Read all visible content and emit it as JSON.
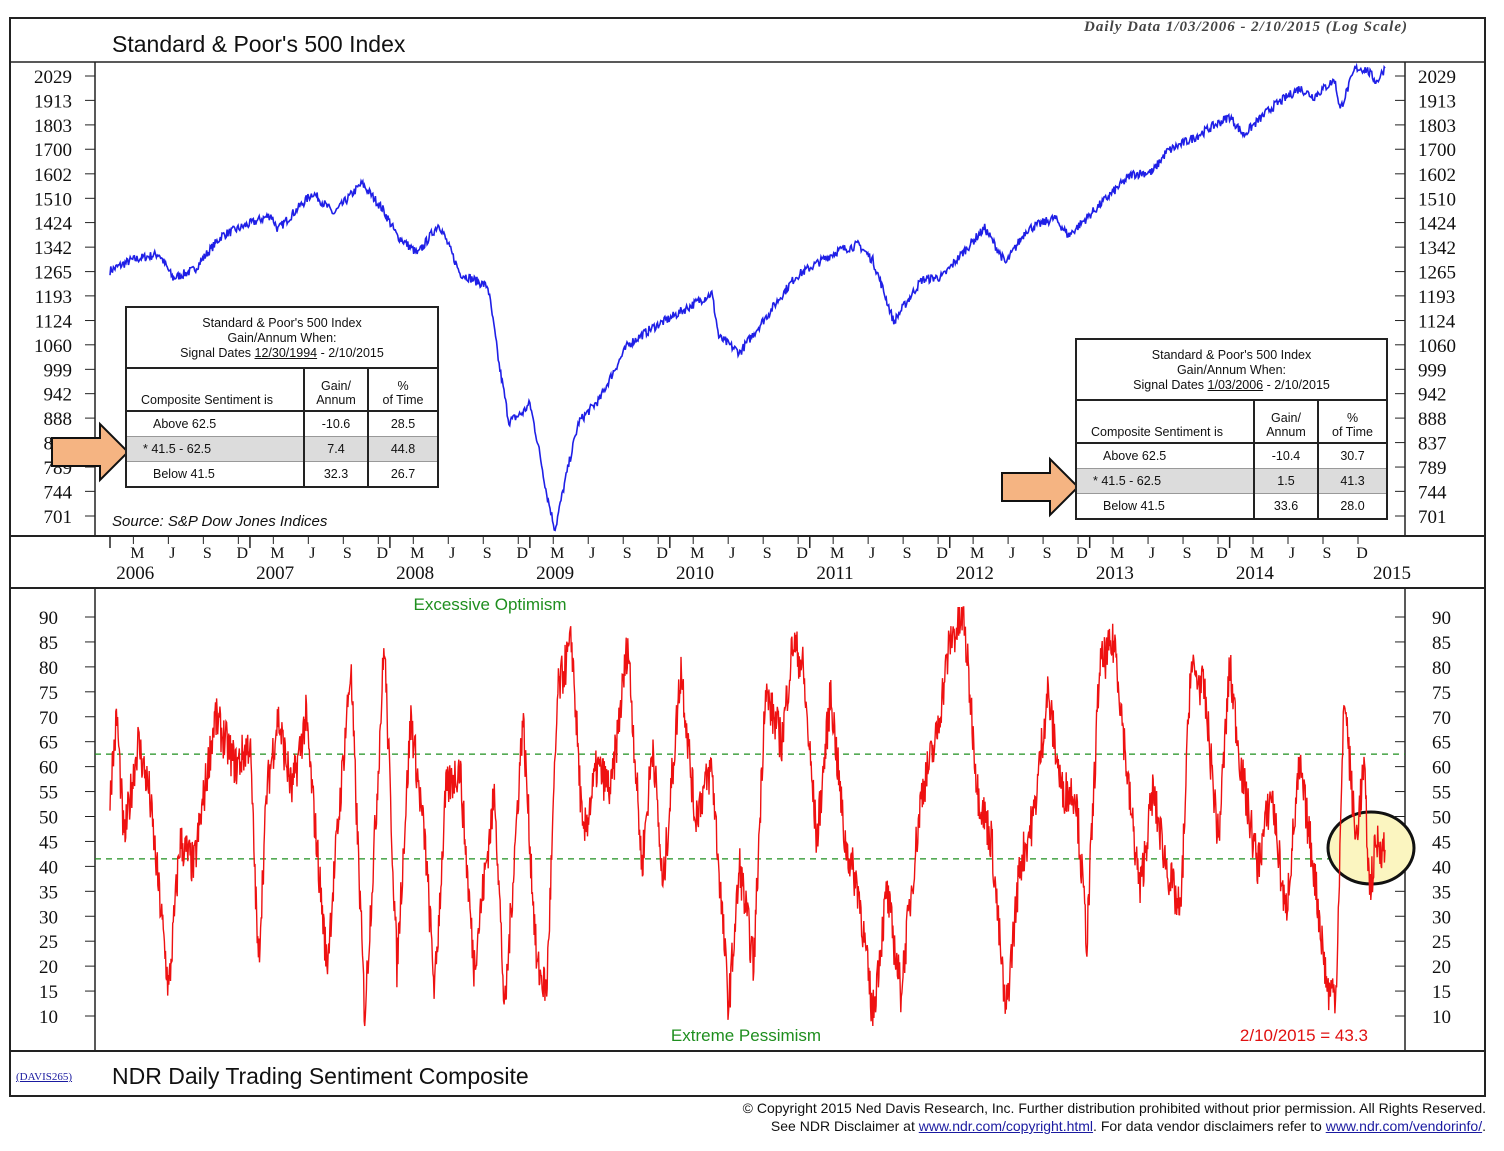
{
  "header": {
    "title": "Standard & Poor's 500 Index",
    "data_note": "Daily Data 1/03/2006 - 2/10/2015 (Log Scale)",
    "source": "Source: S&P Dow Jones Indices"
  },
  "table_left": {
    "line1": "Standard & Poor's 500 Index",
    "line2": "Gain/Annum When:",
    "line3_prefix": "Signal Dates ",
    "line3_date": "12/30/1994",
    "line3_suffix": " - 2/10/2015",
    "col1": "Composite Sentiment is",
    "col2a": "Gain/",
    "col2b": "Annum",
    "col3a": "%",
    "col3b": "of Time",
    "rows": [
      {
        "label": "Above 62.5",
        "gain": "-10.6",
        "time": "28.5"
      },
      {
        "label": "* 41.5 - 62.5",
        "gain": "7.4",
        "time": "44.8"
      },
      {
        "label": "Below 41.5",
        "gain": "32.3",
        "time": "26.7"
      }
    ]
  },
  "table_right": {
    "line1": "Standard & Poor's 500 Index",
    "line2": "Gain/Annum When:",
    "line3_prefix": "Signal Dates ",
    "line3_date": "1/03/2006",
    "line3_suffix": " - 2/10/2015",
    "col1": "Composite Sentiment is",
    "col2a": "Gain/",
    "col2b": "Annum",
    "col3a": "%",
    "col3b": "of Time",
    "rows": [
      {
        "label": "Above 62.5",
        "gain": "-10.4",
        "time": "30.7"
      },
      {
        "label": "* 41.5 - 62.5",
        "gain": "1.5",
        "time": "41.3"
      },
      {
        "label": "Below 41.5",
        "gain": "33.6",
        "time": "28.0"
      }
    ]
  },
  "lower": {
    "excessive_label": "Excessive Optimism",
    "extreme_label": "Extreme Pessimism",
    "latest_label": "2/10/2015 = 43.3"
  },
  "bottom": {
    "code": "(DAVIS265)",
    "title": "NDR Daily Trading Sentiment Composite"
  },
  "footer": {
    "line1": "© Copyright 2015 Ned Davis Research, Inc.  Further distribution prohibited without prior permission.  All Rights Reserved.",
    "line2_a": "See NDR Disclaimer at ",
    "line2_link1": "www.ndr.com/copyright.html",
    "line2_b": ". For data vendor disclaimers refer to ",
    "line2_link2": "www.ndr.com/vendorinfo/",
    "line2_c": "."
  },
  "colors": {
    "index_line": "#1f1fe6",
    "sentiment_line": "#ee1111",
    "threshold": "#1f8f1f",
    "arrow_fill": "#f5b482",
    "highlight_fill": "#fbf5c0"
  },
  "chart_data": [
    {
      "type": "line",
      "title": "Standard & Poor's 500 Index",
      "scale": "log",
      "yticks": [
        701,
        744,
        789,
        837,
        888,
        942,
        999,
        1060,
        1124,
        1193,
        1265,
        1342,
        1424,
        1510,
        1602,
        1700,
        1803,
        1913,
        2029
      ],
      "ylim": [
        680,
        2100
      ],
      "x_years": [
        "2006",
        "2007",
        "2008",
        "2009",
        "2010",
        "2011",
        "2012",
        "2013",
        "2014",
        "2015"
      ],
      "x_month_labels": [
        "M",
        "J",
        "S",
        "D"
      ],
      "series": [
        {
          "name": "S&P 500",
          "points": [
            [
              2006.0,
              1268
            ],
            [
              2006.15,
              1300
            ],
            [
              2006.35,
              1320
            ],
            [
              2006.45,
              1245
            ],
            [
              2006.6,
              1270
            ],
            [
              2006.8,
              1380
            ],
            [
              2007.0,
              1420
            ],
            [
              2007.15,
              1450
            ],
            [
              2007.2,
              1400
            ],
            [
              2007.45,
              1530
            ],
            [
              2007.6,
              1455
            ],
            [
              2007.8,
              1565
            ],
            [
              2007.95,
              1470
            ],
            [
              2008.05,
              1380
            ],
            [
              2008.2,
              1320
            ],
            [
              2008.35,
              1420
            ],
            [
              2008.5,
              1260
            ],
            [
              2008.7,
              1220
            ],
            [
              2008.78,
              1010
            ],
            [
              2008.85,
              880
            ],
            [
              2008.95,
              900
            ],
            [
              2009.0,
              920
            ],
            [
              2009.12,
              740
            ],
            [
              2009.18,
              677
            ],
            [
              2009.35,
              880
            ],
            [
              2009.5,
              930
            ],
            [
              2009.7,
              1060
            ],
            [
              2009.9,
              1110
            ],
            [
              2010.0,
              1130
            ],
            [
              2010.3,
              1200
            ],
            [
              2010.35,
              1080
            ],
            [
              2010.5,
              1040
            ],
            [
              2010.7,
              1140
            ],
            [
              2010.9,
              1250
            ],
            [
              2011.2,
              1330
            ],
            [
              2011.35,
              1350
            ],
            [
              2011.45,
              1300
            ],
            [
              2011.6,
              1120
            ],
            [
              2011.8,
              1240
            ],
            [
              2011.95,
              1250
            ],
            [
              2012.25,
              1405
            ],
            [
              2012.4,
              1290
            ],
            [
              2012.55,
              1400
            ],
            [
              2012.75,
              1440
            ],
            [
              2012.85,
              1380
            ],
            [
              2013.0,
              1450
            ],
            [
              2013.3,
              1600
            ],
            [
              2013.45,
              1610
            ],
            [
              2013.55,
              1690
            ],
            [
              2013.75,
              1750
            ],
            [
              2014.0,
              1840
            ],
            [
              2014.1,
              1760
            ],
            [
              2014.3,
              1880
            ],
            [
              2014.5,
              1970
            ],
            [
              2014.6,
              1930
            ],
            [
              2014.75,
              2010
            ],
            [
              2014.79,
              1870
            ],
            [
              2014.9,
              2070
            ],
            [
              2014.98,
              2060
            ],
            [
              2015.05,
              2000
            ],
            [
              2015.11,
              2068
            ]
          ]
        }
      ]
    },
    {
      "type": "line",
      "title": "NDR Daily Trading Sentiment Composite",
      "yticks": [
        10,
        15,
        20,
        25,
        30,
        35,
        40,
        45,
        50,
        55,
        60,
        65,
        70,
        75,
        80,
        85,
        90
      ],
      "ylim": [
        5,
        95
      ],
      "thresholds": [
        62.5,
        41.5
      ],
      "latest": {
        "date": "2/10/2015",
        "value": 43.3
      },
      "series": [
        {
          "name": "Sentiment",
          "points": [
            [
              2006.0,
              55
            ],
            [
              2006.05,
              70
            ],
            [
              2006.1,
              45
            ],
            [
              2006.2,
              65
            ],
            [
              2006.28,
              55
            ],
            [
              2006.35,
              35
            ],
            [
              2006.42,
              15
            ],
            [
              2006.5,
              45
            ],
            [
              2006.6,
              40
            ],
            [
              2006.75,
              70
            ],
            [
              2006.9,
              60
            ],
            [
              2007.0,
              65
            ],
            [
              2007.06,
              20
            ],
            [
              2007.12,
              55
            ],
            [
              2007.2,
              70
            ],
            [
              2007.3,
              55
            ],
            [
              2007.4,
              70
            ],
            [
              2007.55,
              20
            ],
            [
              2007.62,
              45
            ],
            [
              2007.72,
              80
            ],
            [
              2007.82,
              10
            ],
            [
              2007.9,
              50
            ],
            [
              2007.96,
              85
            ],
            [
              2008.05,
              20
            ],
            [
              2008.15,
              70
            ],
            [
              2008.25,
              45
            ],
            [
              2008.32,
              15
            ],
            [
              2008.4,
              55
            ],
            [
              2008.5,
              60
            ],
            [
              2008.6,
              20
            ],
            [
              2008.75,
              55
            ],
            [
              2008.82,
              10
            ],
            [
              2008.95,
              70
            ],
            [
              2009.05,
              20
            ],
            [
              2009.12,
              15
            ],
            [
              2009.2,
              75
            ],
            [
              2009.3,
              85
            ],
            [
              2009.38,
              45
            ],
            [
              2009.48,
              60
            ],
            [
              2009.58,
              55
            ],
            [
              2009.7,
              85
            ],
            [
              2009.8,
              40
            ],
            [
              2009.88,
              65
            ],
            [
              2009.95,
              35
            ],
            [
              2010.08,
              80
            ],
            [
              2010.18,
              50
            ],
            [
              2010.3,
              60
            ],
            [
              2010.42,
              12
            ],
            [
              2010.5,
              40
            ],
            [
              2010.6,
              20
            ],
            [
              2010.68,
              75
            ],
            [
              2010.8,
              65
            ],
            [
              2010.88,
              85
            ],
            [
              2010.95,
              80
            ],
            [
              2011.05,
              45
            ],
            [
              2011.15,
              75
            ],
            [
              2011.25,
              45
            ],
            [
              2011.35,
              35
            ],
            [
              2011.45,
              10
            ],
            [
              2011.55,
              35
            ],
            [
              2011.65,
              15
            ],
            [
              2011.8,
              55
            ],
            [
              2011.9,
              65
            ],
            [
              2012.0,
              85
            ],
            [
              2012.1,
              90
            ],
            [
              2012.2,
              55
            ],
            [
              2012.3,
              45
            ],
            [
              2012.4,
              10
            ],
            [
              2012.5,
              40
            ],
            [
              2012.6,
              50
            ],
            [
              2012.7,
              75
            ],
            [
              2012.8,
              55
            ],
            [
              2012.9,
              55
            ],
            [
              2012.98,
              25
            ],
            [
              2013.07,
              80
            ],
            [
              2013.18,
              85
            ],
            [
              2013.28,
              55
            ],
            [
              2013.36,
              35
            ],
            [
              2013.45,
              55
            ],
            [
              2013.55,
              40
            ],
            [
              2013.65,
              30
            ],
            [
              2013.72,
              80
            ],
            [
              2013.82,
              75
            ],
            [
              2013.92,
              45
            ],
            [
              2014.0,
              80
            ],
            [
              2014.08,
              60
            ],
            [
              2014.2,
              40
            ],
            [
              2014.3,
              55
            ],
            [
              2014.4,
              30
            ],
            [
              2014.5,
              60
            ],
            [
              2014.6,
              40
            ],
            [
              2014.7,
              15
            ],
            [
              2014.76,
              15
            ],
            [
              2014.82,
              75
            ],
            [
              2014.9,
              45
            ],
            [
              2014.96,
              60
            ],
            [
              2015.0,
              35
            ],
            [
              2015.05,
              45
            ],
            [
              2015.11,
              43.3
            ]
          ]
        }
      ]
    }
  ]
}
